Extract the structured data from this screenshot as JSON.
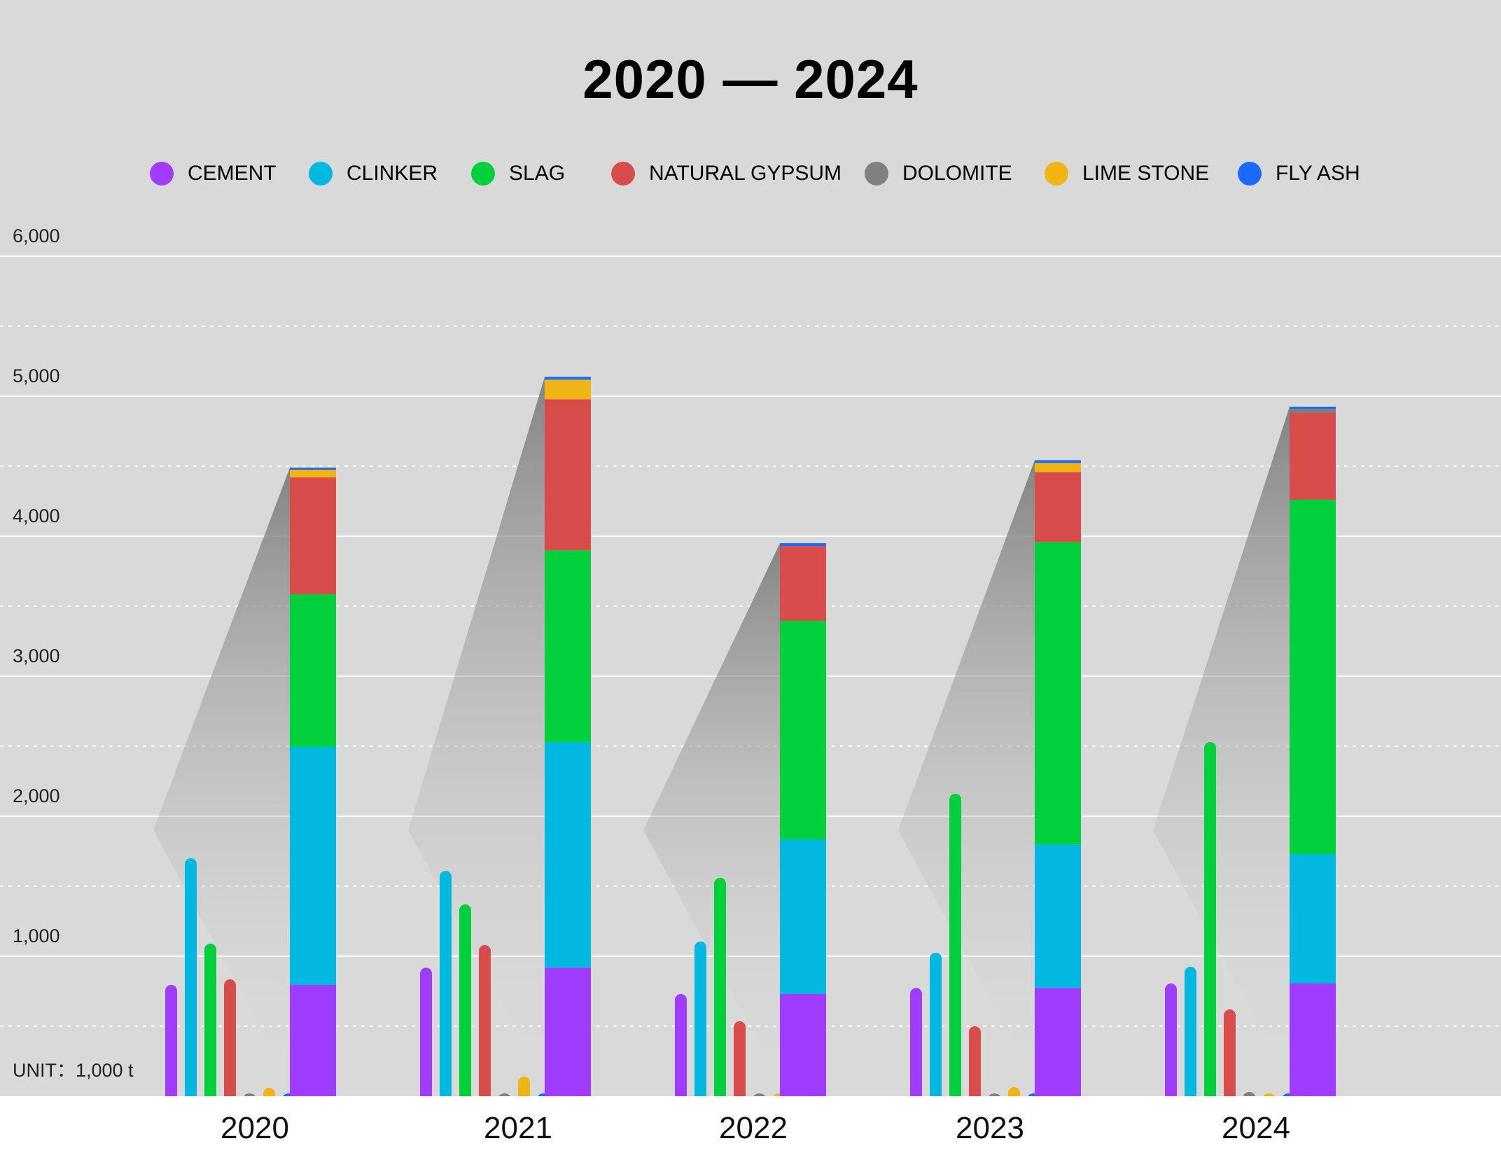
{
  "chart_data": {
    "type": "bar",
    "title": "2020 — 2024",
    "unit_label": "UNIT：1,000 t",
    "categories": [
      "2020",
      "2021",
      "2022",
      "2023",
      "2024"
    ],
    "ylim": [
      0,
      6000
    ],
    "y_ticks": [
      "1,000",
      "2,000",
      "3,000",
      "4,000",
      "5,000",
      "6,000"
    ],
    "y_tick_values": [
      1000,
      2000,
      3000,
      4000,
      5000,
      6000
    ],
    "grid": true,
    "legend_position": "top-center",
    "series": [
      {
        "name": "CEMENT",
        "color": "#a03cff",
        "values": [
          795,
          918,
          730,
          773,
          805
        ]
      },
      {
        "name": "CLINKER",
        "color": "#00b8e0",
        "values": [
          1700,
          1610,
          1105,
          1025,
          925
        ]
      },
      {
        "name": "SLAG",
        "color": "#00d03c",
        "values": [
          1090,
          1370,
          1560,
          2160,
          2530
        ]
      },
      {
        "name": "NATURAL GYPSUM",
        "color": "#d94c4c",
        "values": [
          835,
          1080,
          535,
          500,
          620
        ]
      },
      {
        "name": "DOLOMITE",
        "color": "#808080",
        "values": [
          0,
          0,
          0,
          0,
          30
        ]
      },
      {
        "name": "LIME STONE",
        "color": "#f0b414",
        "values": [
          60,
          140,
          0,
          65,
          0
        ]
      },
      {
        "name": "FLY ASH",
        "color": "#1a6aff",
        "values": [
          10,
          20,
          20,
          20,
          15
        ]
      }
    ]
  }
}
